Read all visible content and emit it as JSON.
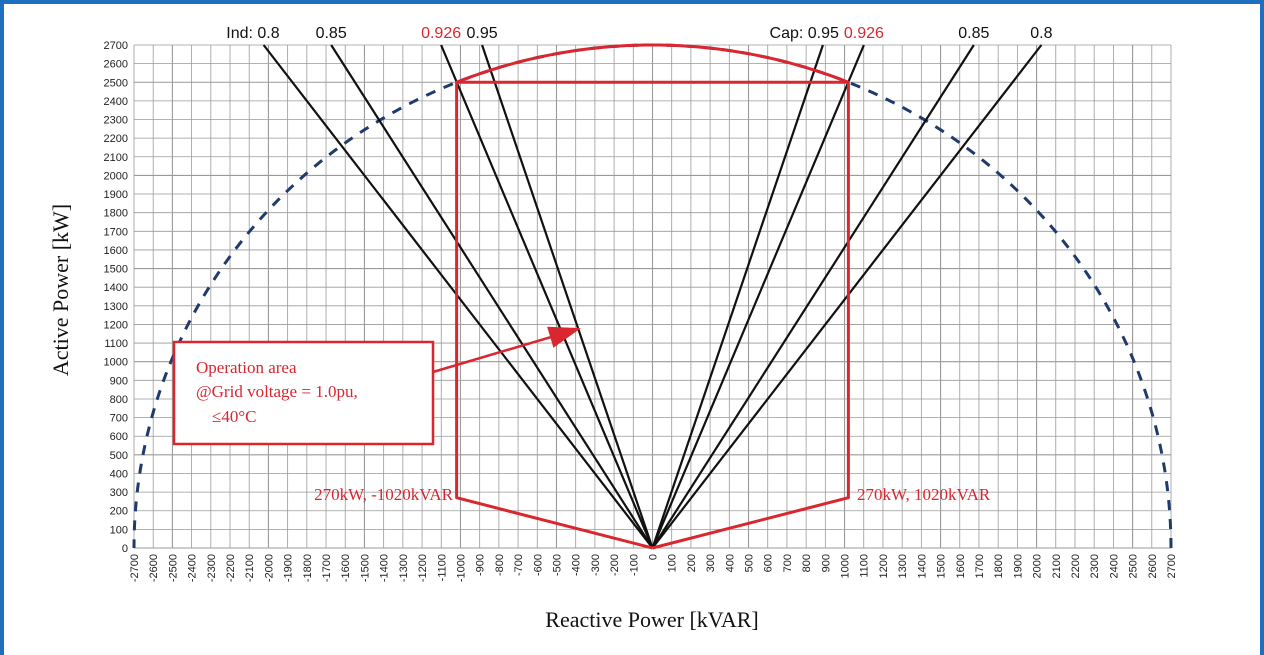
{
  "chart_data": {
    "type": "line",
    "xlabel": "Reactive Power [kVAR]",
    "ylabel": "Active Power [kW]",
    "xlim": [
      -2700,
      2700
    ],
    "ylim": [
      0,
      2700
    ],
    "x_ticks": [
      -2700,
      -2600,
      -2500,
      -2400,
      -2300,
      -2200,
      -2100,
      -2000,
      -1900,
      -1800,
      -1700,
      -1600,
      -1500,
      -1400,
      -1300,
      -1200,
      -1100,
      -1000,
      -900,
      -800,
      -700,
      -600,
      -500,
      -400,
      -300,
      -200,
      -100,
      0,
      100,
      200,
      300,
      400,
      500,
      600,
      700,
      800,
      900,
      1000,
      1100,
      1200,
      1300,
      1400,
      1500,
      1600,
      1700,
      1800,
      1900,
      2000,
      2100,
      2200,
      2300,
      2400,
      2500,
      2600,
      2700
    ],
    "x_tick_labels": [
      "-2700",
      "-2600",
      "-2500",
      "-2400",
      "-2300",
      "-2200",
      "-2100",
      "-2000",
      "-1900",
      "-1800",
      "-1700",
      "-1600",
      "-1500",
      "-1400",
      "-1300",
      "-1200",
      "-1100",
      "-1000",
      "-900",
      "-800",
      "-700",
      "-600",
      "-500",
      "-400",
      "-300",
      "-200",
      "-100",
      "0",
      "100",
      "200",
      "300",
      "400",
      "500",
      "600",
      "700",
      "800",
      "900",
      "1000",
      "1100",
      "1200",
      "1300",
      "1400",
      "1500",
      "1600",
      "1700",
      "1800",
      "1900",
      "2000",
      "2100",
      "2200",
      "2300",
      "2400",
      "2500",
      "2600",
      "2700"
    ],
    "y_ticks": [
      0,
      100,
      200,
      300,
      400,
      500,
      600,
      700,
      800,
      900,
      1000,
      1100,
      1200,
      1300,
      1400,
      1500,
      1600,
      1700,
      1800,
      1900,
      2000,
      2100,
      2200,
      2300,
      2400,
      2500,
      2600,
      2700
    ],
    "grid": true,
    "circle": {
      "radius": 2700,
      "style": "dashed",
      "color": "#1f3b6e"
    },
    "pf_lines": [
      {
        "side": "Ind",
        "pf": 0.8,
        "label": "Ind: 0.8",
        "highlight": false
      },
      {
        "side": "Ind",
        "pf": 0.85,
        "label": "0.85",
        "highlight": false
      },
      {
        "side": "Ind",
        "pf": 0.926,
        "label": "0.926",
        "highlight": true
      },
      {
        "side": "Ind",
        "pf": 0.95,
        "label": "0.95",
        "highlight": false
      },
      {
        "side": "Cap",
        "pf": 0.95,
        "label": "Cap: 0.95",
        "highlight": false
      },
      {
        "side": "Cap",
        "pf": 0.926,
        "label": "0.926",
        "highlight": true
      },
      {
        "side": "Cap",
        "pf": 0.85,
        "label": "0.85",
        "highlight": false
      },
      {
        "side": "Cap",
        "pf": 0.8,
        "label": "0.8",
        "highlight": false
      }
    ],
    "operation_area": {
      "color": "#d9262f",
      "polygon": [
        [
          0,
          0
        ],
        [
          -1020,
          270
        ],
        [
          -1020,
          2500
        ],
        [
          1020,
          2500
        ],
        [
          1020,
          270
        ],
        [
          0,
          0
        ]
      ],
      "arc_radius": 2700,
      "left_corner_label": "270kW, -1020kVAR",
      "right_corner_label": "270kW, 1020kVAR"
    },
    "annotation": {
      "lines": [
        "Operation area",
        "@Grid voltage = 1.0pu,",
        "≤40°C"
      ],
      "arrow_target": [
        -350,
        1200
      ]
    }
  },
  "colors": {
    "frame": "#1f6fc0",
    "red": "#d9262f",
    "grid": "#9a9a9a",
    "pf_line": "#111111"
  }
}
